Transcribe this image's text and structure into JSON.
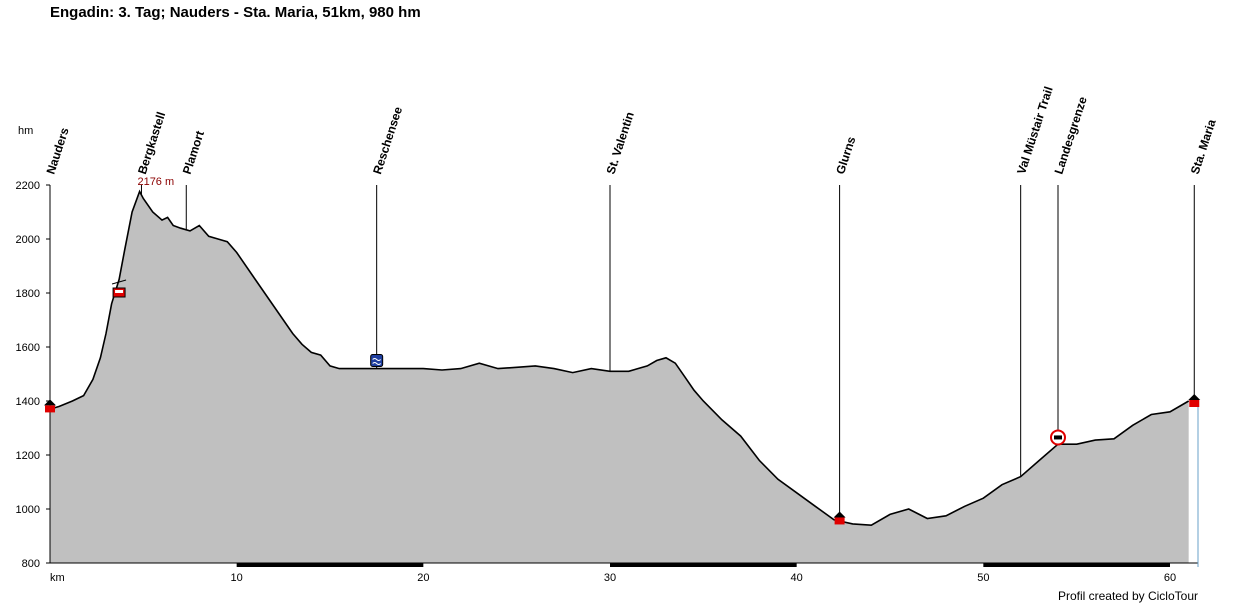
{
  "title": "Engadin: 3. Tag; Nauders - Sta. Maria, 51km, 980 hm",
  "credit": "Profil created by CicloTour",
  "colors": {
    "fill": "#c0c0c0",
    "line": "#000000",
    "peak_label": "#8b0000",
    "marker_red": "#e00000",
    "lake_blue": "#1f3fa0"
  },
  "chart_data": {
    "type": "area",
    "title": "Engadin: 3. Tag; Nauders - Sta. Maria, 51km, 980 hm",
    "xlabel": "km",
    "ylabel": "hm",
    "xlim": [
      0,
      61.5
    ],
    "ylim": [
      800,
      2200
    ],
    "xticks": [
      10,
      20,
      30,
      40,
      50,
      60
    ],
    "yticks": [
      800,
      1000,
      1200,
      1400,
      1600,
      1800,
      2000,
      2200
    ],
    "grid": false,
    "peak_label": {
      "text": "2176 m",
      "x": 4.9,
      "y": 2176
    },
    "x": [
      0,
      0.5,
      1.2,
      1.8,
      2.3,
      2.7,
      3.0,
      3.3,
      3.7,
      4.0,
      4.4,
      4.8,
      5.0,
      5.5,
      6.0,
      6.3,
      6.6,
      7.0,
      7.5,
      8.0,
      8.5,
      9.0,
      9.5,
      10.0,
      11.0,
      12.0,
      13.0,
      13.5,
      14.0,
      14.5,
      15.0,
      15.5,
      16.0,
      17.0,
      18.0,
      19.0,
      20.0,
      21.0,
      22.0,
      23.0,
      24.0,
      25.0,
      26.0,
      27.0,
      28.0,
      29.0,
      30.0,
      31.0,
      32.0,
      32.5,
      33.0,
      33.5,
      34.0,
      34.5,
      35.0,
      36.0,
      37.0,
      38.0,
      39.0,
      40.0,
      41.0,
      42.0,
      43.0,
      44.0,
      45.0,
      46.0,
      47.0,
      48.0,
      49.0,
      50.0,
      51.0,
      52.0,
      53.0,
      54.0,
      55.0,
      56.0,
      57.0,
      58.0,
      59.0,
      60.0,
      61.0
    ],
    "y": [
      1370,
      1380,
      1400,
      1420,
      1480,
      1560,
      1650,
      1760,
      1850,
      1960,
      2100,
      2176,
      2150,
      2100,
      2070,
      2080,
      2050,
      2040,
      2030,
      2050,
      2010,
      2000,
      1990,
      1950,
      1850,
      1750,
      1650,
      1610,
      1580,
      1570,
      1530,
      1520,
      1520,
      1520,
      1520,
      1520,
      1520,
      1515,
      1520,
      1540,
      1520,
      1525,
      1530,
      1520,
      1505,
      1520,
      1510,
      1510,
      1530,
      1550,
      1560,
      1540,
      1490,
      1440,
      1400,
      1330,
      1270,
      1180,
      1110,
      1060,
      1010,
      960,
      945,
      940,
      980,
      1000,
      965,
      975,
      1010,
      1040,
      1090,
      1120,
      1180,
      1240,
      1240,
      1255,
      1260,
      1310,
      1350,
      1360,
      1400
    ],
    "waypoints": [
      {
        "label": "Nauders",
        "x": 0
      },
      {
        "label": "Bergkastell",
        "x": 4.9
      },
      {
        "label": "Plamort",
        "x": 7.3
      },
      {
        "label": "Reschensee",
        "x": 17.5
      },
      {
        "label": "St. Valentin",
        "x": 30.0
      },
      {
        "label": "Glurns",
        "x": 42.3
      },
      {
        "label": "Val Müstair Trail",
        "x": 52.0
      },
      {
        "label": "Landesgrenze",
        "x": 54.0
      },
      {
        "label": "Sta. Maria",
        "x": 61.3
      }
    ],
    "markers": [
      {
        "type": "town",
        "x": 0,
        "y": 1380
      },
      {
        "type": "cable-car",
        "x": 3.7,
        "y": 1800
      },
      {
        "type": "lake",
        "x": 17.5,
        "y": 1550
      },
      {
        "type": "town",
        "x": 42.3,
        "y": 965
      },
      {
        "type": "border",
        "x": 54.0,
        "y": 1265
      },
      {
        "type": "town",
        "x": 61.3,
        "y": 1400
      }
    ]
  }
}
